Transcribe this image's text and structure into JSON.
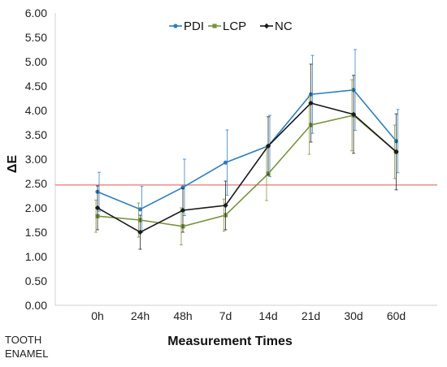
{
  "chart_data": {
    "type": "line",
    "categories": [
      "0h",
      "24h",
      "48h",
      "7d",
      "14d",
      "21d",
      "30d",
      "60d"
    ],
    "xlabel": "Measurement Times",
    "ylabel": "ΔE",
    "ylim": [
      0,
      6
    ],
    "yticks": [
      "0.00",
      "0.50",
      "1.00",
      "1.50",
      "2.00",
      "2.50",
      "3.00",
      "3.50",
      "4.00",
      "4.50",
      "5.00",
      "5.50",
      "6.00"
    ],
    "note_lines": [
      "TOOTH",
      "ENAMEL"
    ],
    "legend_position": "top",
    "reference_line": {
      "value": 2.47,
      "color": "#f08080"
    },
    "series": [
      {
        "name": "PDI",
        "color": "#2e7ebf",
        "marker": "circle",
        "values": [
          2.33,
          1.97,
          2.42,
          2.93,
          3.27,
          4.33,
          4.42,
          3.37
        ],
        "errors": [
          0.4,
          0.47,
          0.58,
          0.67,
          0.63,
          0.8,
          0.83,
          0.65
        ]
      },
      {
        "name": "LCP",
        "color": "#77933c",
        "marker": "square",
        "values": [
          1.83,
          1.75,
          1.62,
          1.85,
          2.7,
          3.7,
          3.9,
          3.15
        ],
        "errors": [
          0.33,
          0.35,
          0.38,
          0.33,
          0.55,
          0.6,
          0.73,
          0.55
        ]
      },
      {
        "name": "NC",
        "color": "#1a1a1a",
        "marker": "diamond",
        "values": [
          2.0,
          1.5,
          1.95,
          2.05,
          3.27,
          4.15,
          3.92,
          3.15
        ],
        "errors": [
          0.45,
          0.35,
          0.45,
          0.5,
          0.6,
          0.8,
          0.8,
          0.78
        ]
      }
    ]
  }
}
